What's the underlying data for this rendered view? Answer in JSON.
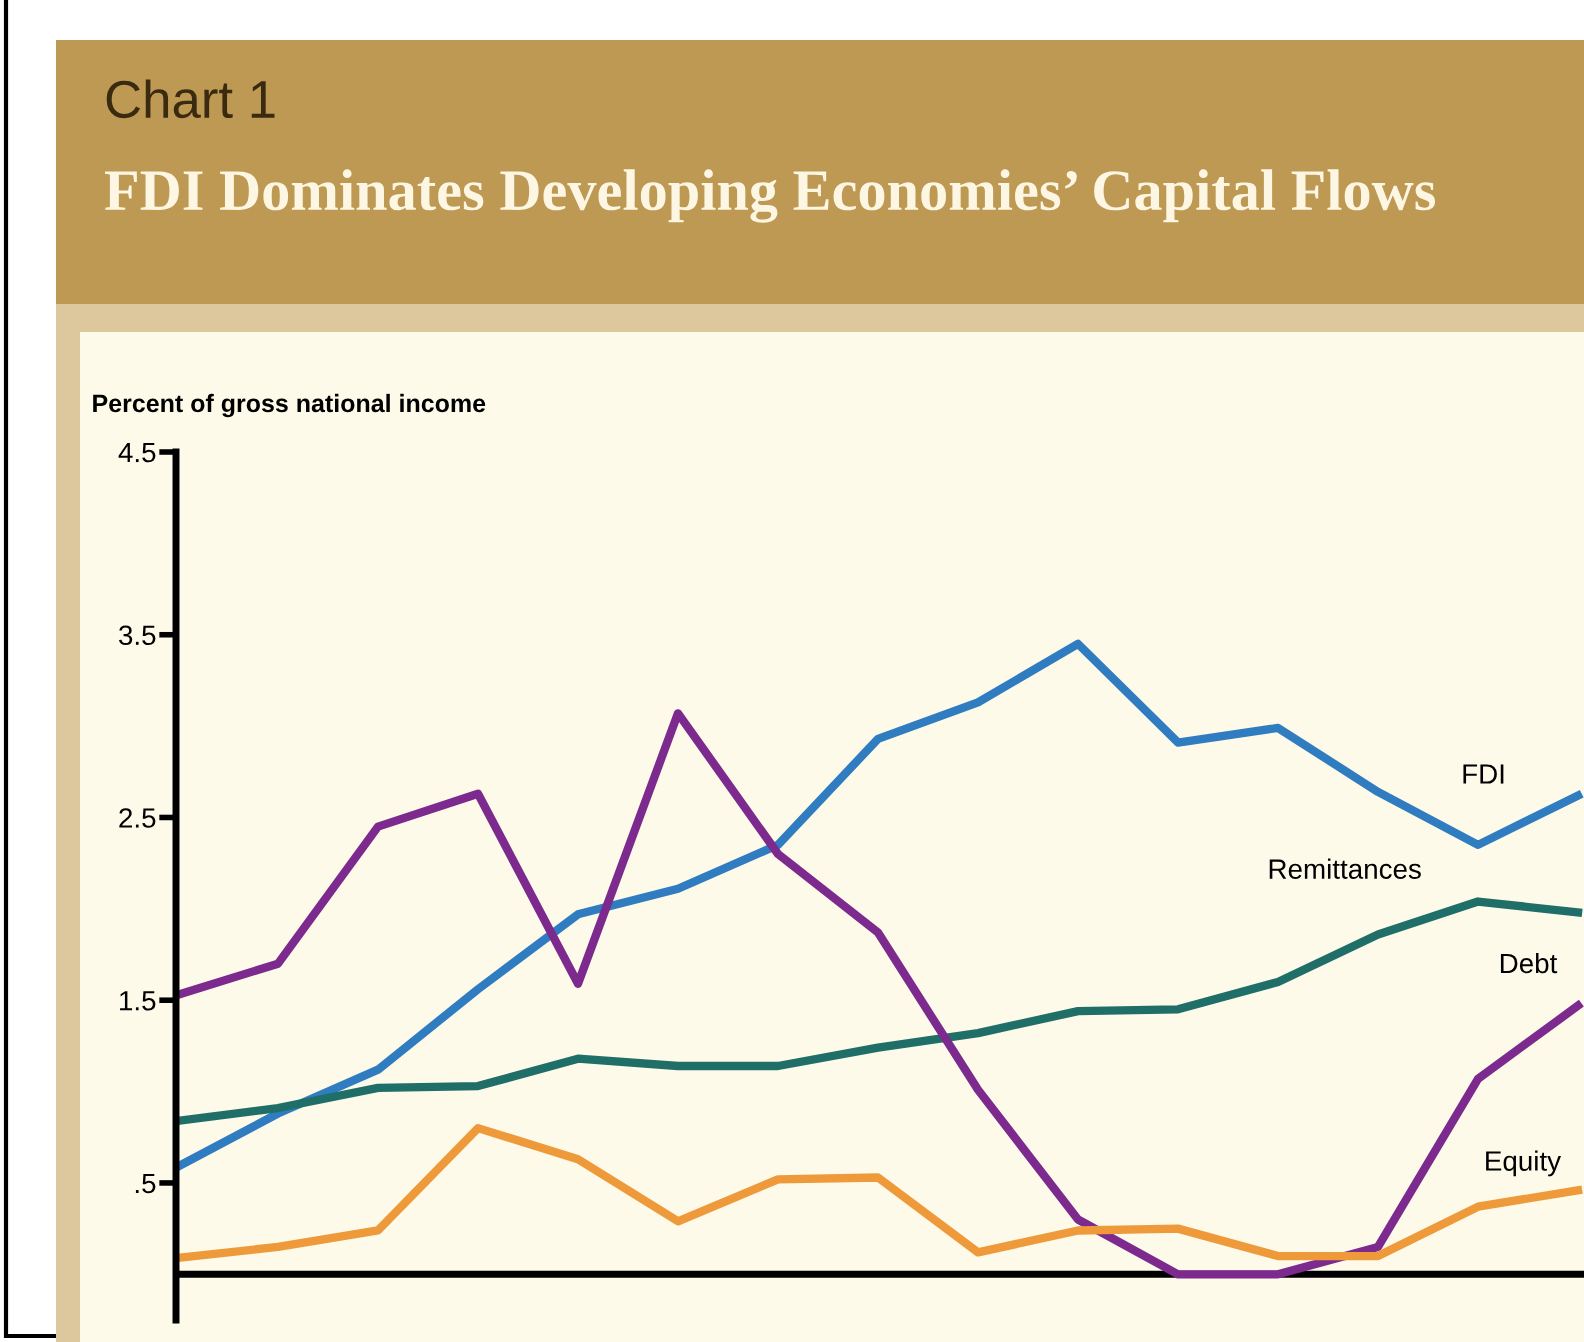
{
  "chart_data": {
    "type": "line",
    "subtitle": "Chart 1",
    "title": "FDI Dominates Developing Economies’ Capital Flows",
    "ylabel": "Percent of gross national income",
    "categories": [
      null,
      null,
      null,
      null,
      null,
      null,
      null,
      null,
      null,
      null,
      null,
      null,
      null,
      null,
      null
    ],
    "series": [
      {
        "name": "FDI",
        "color": "#2f7dc0",
        "values": [
          0.59,
          0.88,
          1.12,
          1.56,
          1.97,
          2.11,
          2.35,
          2.93,
          3.13,
          3.45,
          2.91,
          2.99,
          2.64,
          2.35,
          2.62
        ]
      },
      {
        "name": "Remittances",
        "color": "#1f6e68",
        "values": [
          0.84,
          0.91,
          1.02,
          1.03,
          1.18,
          1.14,
          1.14,
          1.24,
          1.32,
          1.44,
          1.45,
          1.6,
          1.86,
          2.04,
          1.98
        ]
      },
      {
        "name": "Debt",
        "color": "#7d2a8e",
        "values": [
          1.53,
          1.7,
          2.45,
          2.63,
          1.59,
          3.07,
          2.3,
          1.87,
          1.01,
          0.3,
          0,
          0,
          0.15,
          1.07,
          1.47
        ]
      },
      {
        "name": "Equity",
        "color": "#ee9a3a",
        "values": [
          0.09,
          0.15,
          0.24,
          0.8,
          0.63,
          0.29,
          0.52,
          0.53,
          0.12,
          0.24,
          0.25,
          0.1,
          0.1,
          0.37,
          0.46
        ]
      }
    ],
    "ylim": [
      -0.25,
      4.5
    ],
    "yticks": [
      {
        "value": 0.5,
        "label": ".5"
      },
      1.5,
      2.5,
      3.5,
      4.5
    ],
    "ref_lines": [
      {
        "axis": "y",
        "value": 0,
        "color": "#000000"
      }
    ],
    "grid": false,
    "legend": false,
    "marker": "none",
    "line_style": "solid",
    "tick_labels": "y"
  }
}
